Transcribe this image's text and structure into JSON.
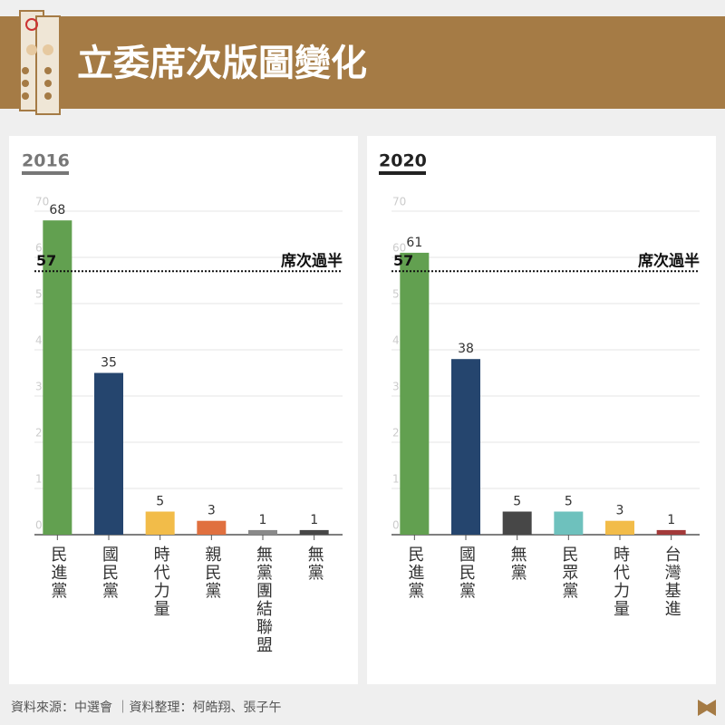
{
  "header": {
    "title": "立委席次版圖變化"
  },
  "chart_data": [
    {
      "type": "bar",
      "title": "2016",
      "categories": [
        "民進黨",
        "國民黨",
        "時代力量",
        "親民黨",
        "無黨團結聯盟",
        "無黨"
      ],
      "values": [
        68,
        35,
        5,
        3,
        1,
        1
      ],
      "colors": [
        "#62a050",
        "#25456e",
        "#f2bc49",
        "#e0703f",
        "#8a8a8a",
        "#474747"
      ],
      "ylim": [
        0,
        70
      ],
      "yticks": [
        0,
        10,
        20,
        30,
        40,
        50,
        60,
        70
      ],
      "grid": true,
      "threshold": {
        "value": 57,
        "label": "席次過半"
      }
    },
    {
      "type": "bar",
      "title": "2020",
      "categories": [
        "民進黨",
        "國民黨",
        "無黨",
        "民眾黨",
        "時代力量",
        "台灣基進"
      ],
      "values": [
        61,
        38,
        5,
        5,
        3,
        1
      ],
      "colors": [
        "#62a050",
        "#25456e",
        "#474747",
        "#6ec1bd",
        "#f2bc49",
        "#a33a3a"
      ],
      "ylim": [
        0,
        70
      ],
      "yticks": [
        0,
        10,
        20,
        30,
        40,
        50,
        60,
        70
      ],
      "grid": true,
      "threshold": {
        "value": 57,
        "label": "席次過半"
      }
    }
  ],
  "footer": {
    "text": "資料來源：中選會 ｜資料整理：柯皓翔、張子午"
  }
}
